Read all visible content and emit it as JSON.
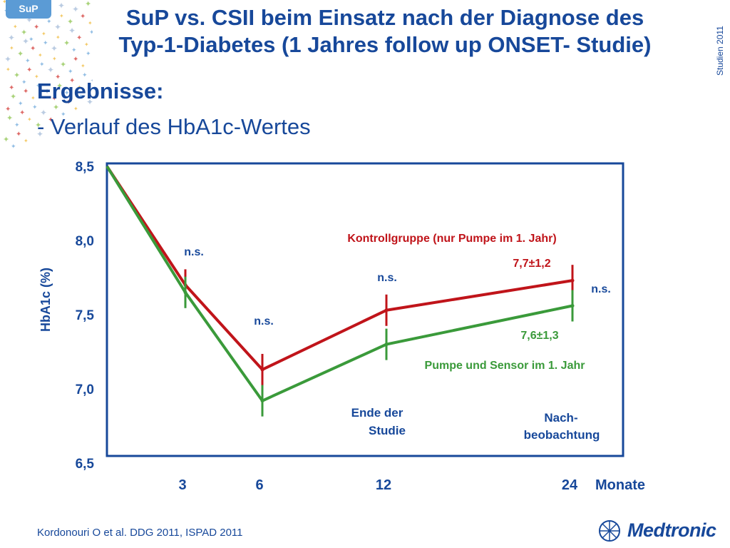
{
  "badge": "SuP",
  "title_line1": "SuP vs. CSII beim Einsatz nach der Diagnose des",
  "title_line2": "Typ-1-Diabetes (1 Jahres follow up ONSET- Studie)",
  "side_label": "Studien 2011",
  "heading": "Ergebnisse:",
  "subheading": "- Verlauf des HbA1c-Wertes",
  "citation": "Kordonouri O et al. DDG 2011, ISPAD 2011",
  "logo_text": "Medtronic",
  "colors": {
    "primary": "#17489a",
    "red": "#c0141a",
    "green": "#3a9a3a"
  },
  "chart_data": {
    "type": "line",
    "ylabel": "HbA1c (%)",
    "xlabel": "Monate",
    "ylim": [
      6.5,
      8.5
    ],
    "yticks": [
      "8,5",
      "8,0",
      "7,5",
      "7,0",
      "6,5"
    ],
    "xticks": [
      "3",
      "6",
      "12",
      "24"
    ],
    "series": [
      {
        "name": "Kontrollgruppe (nur Pumpe im 1. Jahr)",
        "color": "#c0141a",
        "x": [
          0,
          3,
          6,
          12,
          24
        ],
        "y": [
          8.5,
          7.7,
          7.13,
          7.53,
          7.73
        ]
      },
      {
        "name": "Pumpe und Sensor im 1. Jahr",
        "color": "#3a9a3a",
        "x": [
          0,
          3,
          6,
          12,
          24
        ],
        "y": [
          8.5,
          7.65,
          6.92,
          7.3,
          7.56
        ]
      }
    ],
    "annotations": {
      "ns": [
        "n.s.",
        "n.s.",
        "n.s.",
        "n.s."
      ],
      "red_end": "7,7±1,2",
      "green_end": "7,6±1,3",
      "end_study_1": "Ende der",
      "end_study_2": "Studie",
      "followup_1": "Nach-",
      "followup_2": "beobachtung"
    }
  }
}
